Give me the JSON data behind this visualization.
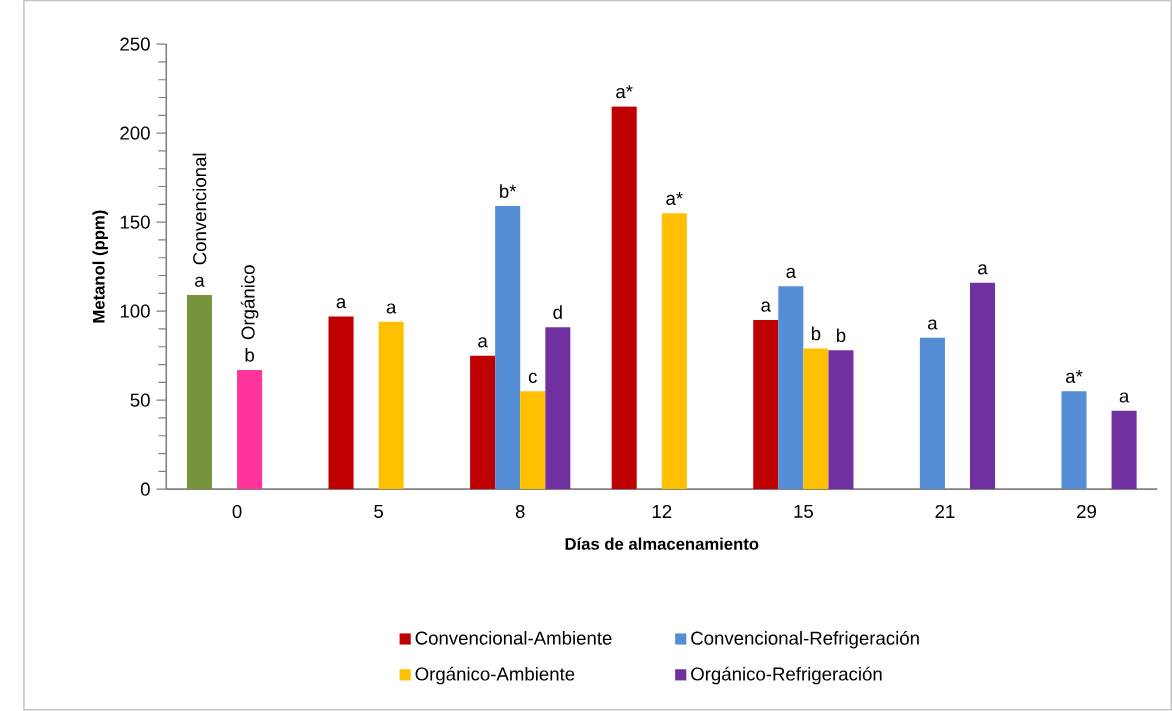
{
  "chart_data": {
    "type": "bar",
    "xlabel": "Días de almacenamiento",
    "ylabel": "Metanol (ppm)",
    "categories": [
      "0",
      "5",
      "8",
      "12",
      "15",
      "21",
      "29"
    ],
    "ylim": [
      0,
      250
    ],
    "yticks": [
      0,
      50,
      100,
      150,
      200,
      250
    ],
    "legend": "bottom",
    "series": [
      {
        "name": "Convencional-Ambiente",
        "color": "#c00000",
        "values": [
          null,
          97,
          75,
          215,
          95,
          null,
          null
        ],
        "value_labels": [
          null,
          "a",
          "a",
          "a*",
          "a",
          null,
          null
        ]
      },
      {
        "name": "Convencional-Refrigeración",
        "color": "#558ed5",
        "values": [
          null,
          null,
          159,
          null,
          114,
          85,
          55
        ],
        "value_labels": [
          null,
          null,
          "b*",
          null,
          "a",
          "a",
          "a*"
        ]
      },
      {
        "name": "Orgánico-Ambiente",
        "color": "#ffc000",
        "values": [
          null,
          94,
          55,
          155,
          79,
          null,
          null
        ],
        "value_labels": [
          null,
          "a",
          "c",
          "a*",
          "b",
          null,
          null
        ]
      },
      {
        "name": "Orgánico-Refrigeración",
        "color": "#7030a0",
        "values": [
          null,
          null,
          91,
          null,
          78,
          116,
          44
        ],
        "value_labels": [
          null,
          null,
          "d",
          null,
          "b",
          "a",
          "a"
        ]
      },
      {
        "name": "Convencional",
        "color": "#77933c",
        "values": [
          109,
          null,
          null,
          null,
          null,
          null,
          null
        ],
        "value_labels": [
          "a",
          null,
          null,
          null,
          null,
          null,
          null
        ]
      },
      {
        "name": "Orgánico",
        "color": "#ff3399",
        "values": [
          67,
          null,
          null,
          null,
          null,
          null,
          null
        ],
        "value_labels": [
          "b",
          null,
          null,
          null,
          null,
          null,
          null
        ]
      }
    ]
  }
}
